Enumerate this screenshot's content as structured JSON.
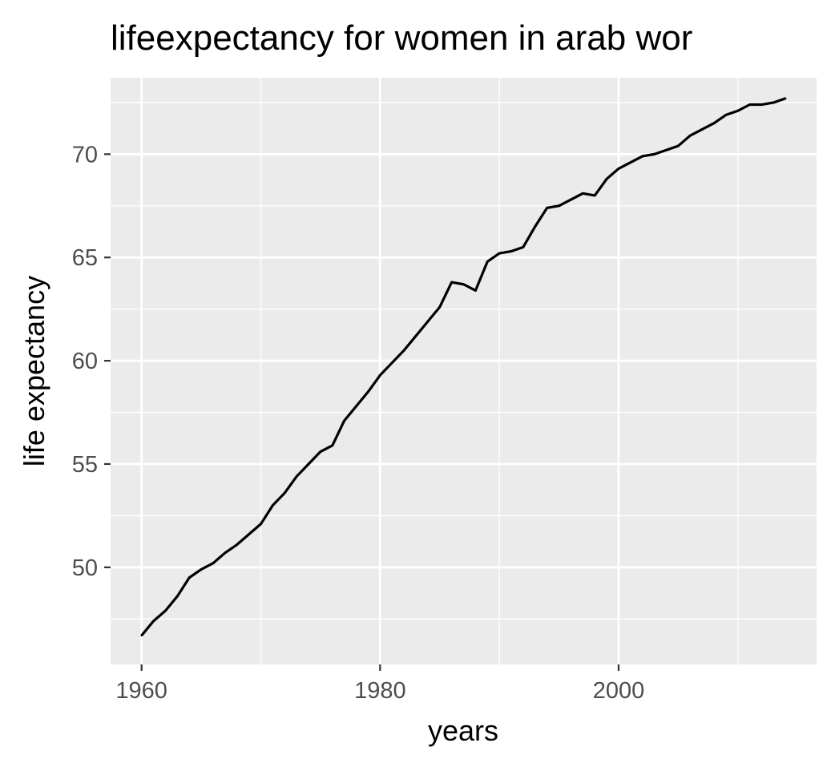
{
  "chart_data": {
    "type": "line",
    "title": "lifeexpectancy for women in arab wor",
    "xlabel": "years",
    "ylabel": "life expectancy",
    "xlim": [
      1957.4,
      2016.6
    ],
    "ylim": [
      45.3,
      73.7
    ],
    "x_ticks": [
      1960,
      1980,
      2000
    ],
    "y_ticks": [
      50,
      55,
      60,
      65,
      70
    ],
    "grid": true,
    "legend": "none",
    "colors": {
      "panel": "#ebebeb",
      "grid": "#ffffff",
      "line": "#000000",
      "tick_text": "#4d4d4d"
    },
    "series": [
      {
        "x": [
          1960,
          1961,
          1962,
          1963,
          1964,
          1965,
          1966,
          1967,
          1968,
          1969,
          1970,
          1971,
          1972,
          1973,
          1974,
          1975,
          1976,
          1977,
          1978,
          1979,
          1980,
          1981,
          1982,
          1983,
          1984,
          1985,
          1986,
          1987,
          1988,
          1989,
          1990,
          1991,
          1992,
          1993,
          1994,
          1995,
          1996,
          1997,
          1998,
          1999,
          2000,
          2001,
          2002,
          2003,
          2004,
          2005,
          2006,
          2007,
          2008,
          2009,
          2010,
          2011,
          2012,
          2013,
          2014
        ],
        "values": [
          46.7,
          47.4,
          47.9,
          48.6,
          49.5,
          49.9,
          50.2,
          50.7,
          51.1,
          51.6,
          52.1,
          53.0,
          53.6,
          54.4,
          55.0,
          55.6,
          55.9,
          57.1,
          57.8,
          58.5,
          59.3,
          59.9,
          60.5,
          61.2,
          61.9,
          62.6,
          63.8,
          63.7,
          63.4,
          64.8,
          65.2,
          65.3,
          65.5,
          66.5,
          67.4,
          67.5,
          67.8,
          68.1,
          68.0,
          68.8,
          69.3,
          69.6,
          69.9,
          70.0,
          70.2,
          70.4,
          70.9,
          71.2,
          71.5,
          71.9,
          72.1,
          72.4,
          72.4,
          72.5,
          72.7
        ]
      }
    ]
  }
}
